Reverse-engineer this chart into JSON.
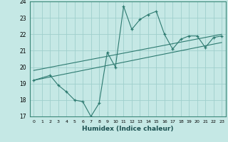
{
  "xlabel": "Humidex (Indice chaleur)",
  "background_color": "#c5e8e5",
  "grid_color": "#9fcfcc",
  "line_color": "#2d7a70",
  "x_data": [
    0,
    2,
    3,
    4,
    5,
    6,
    7,
    8,
    9,
    10,
    11,
    12,
    13,
    14,
    15,
    16,
    17,
    18,
    19,
    20,
    21,
    22,
    23
  ],
  "y_data": [
    19.2,
    19.5,
    18.9,
    18.5,
    18.0,
    17.9,
    17.0,
    17.8,
    20.9,
    20.0,
    23.7,
    22.3,
    22.9,
    23.2,
    23.4,
    22.0,
    21.1,
    21.7,
    21.9,
    21.9,
    21.2,
    21.8,
    21.9
  ],
  "trend1_start": 19.2,
  "trend1_end": 21.5,
  "trend2_start": 19.8,
  "trend2_end": 22.0,
  "ylim": [
    17,
    24
  ],
  "xlim": [
    -0.5,
    23.5
  ],
  "yticks": [
    17,
    18,
    19,
    20,
    21,
    22,
    23,
    24
  ],
  "xticks": [
    0,
    1,
    2,
    3,
    4,
    5,
    6,
    7,
    8,
    9,
    10,
    11,
    12,
    13,
    14,
    15,
    16,
    17,
    18,
    19,
    20,
    21,
    22,
    23
  ]
}
